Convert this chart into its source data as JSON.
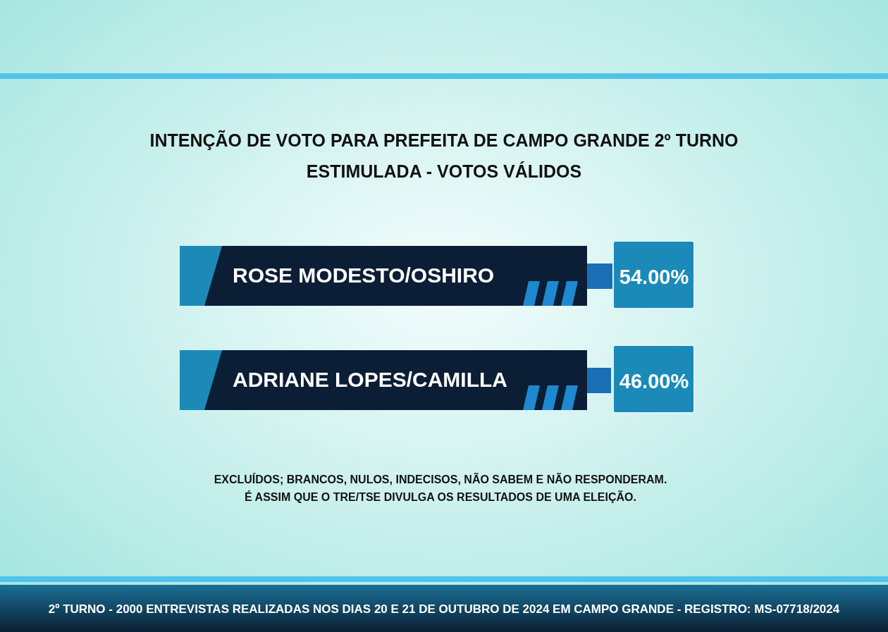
{
  "chart_data": {
    "type": "other",
    "title": "INTENÇÃO DE VOTO PARA PREFEITA DE CAMPO GRANDE 2º TURNO",
    "subtitle": "ESTIMULADA - VOTOS VÁLIDOS",
    "categories": [
      "ROSE MODESTO/OSHIRO",
      "ADRIANE LOPES/CAMILLA"
    ],
    "values": [
      54,
      46
    ],
    "value_labels": [
      "54.00%",
      "46.00%"
    ],
    "annotations": [
      "EXCLUÍDOS; BRANCOS, NULOS, INDECISOS, NÃO SABEM E NÃO RESPONDERAM.",
      "É ASSIM QUE O TRE/TSE DIVULGA OS RESULTADOS DE UMA ELEIÇÃO.",
      "2º TURNO - 2000 ENTREVISTAS REALIZADAS NOS DIAS 20 E 21 DE OUTUBRO DE 2024 EM CAMPO GRANDE - REGISTRO: MS-07718/2024"
    ]
  }
}
